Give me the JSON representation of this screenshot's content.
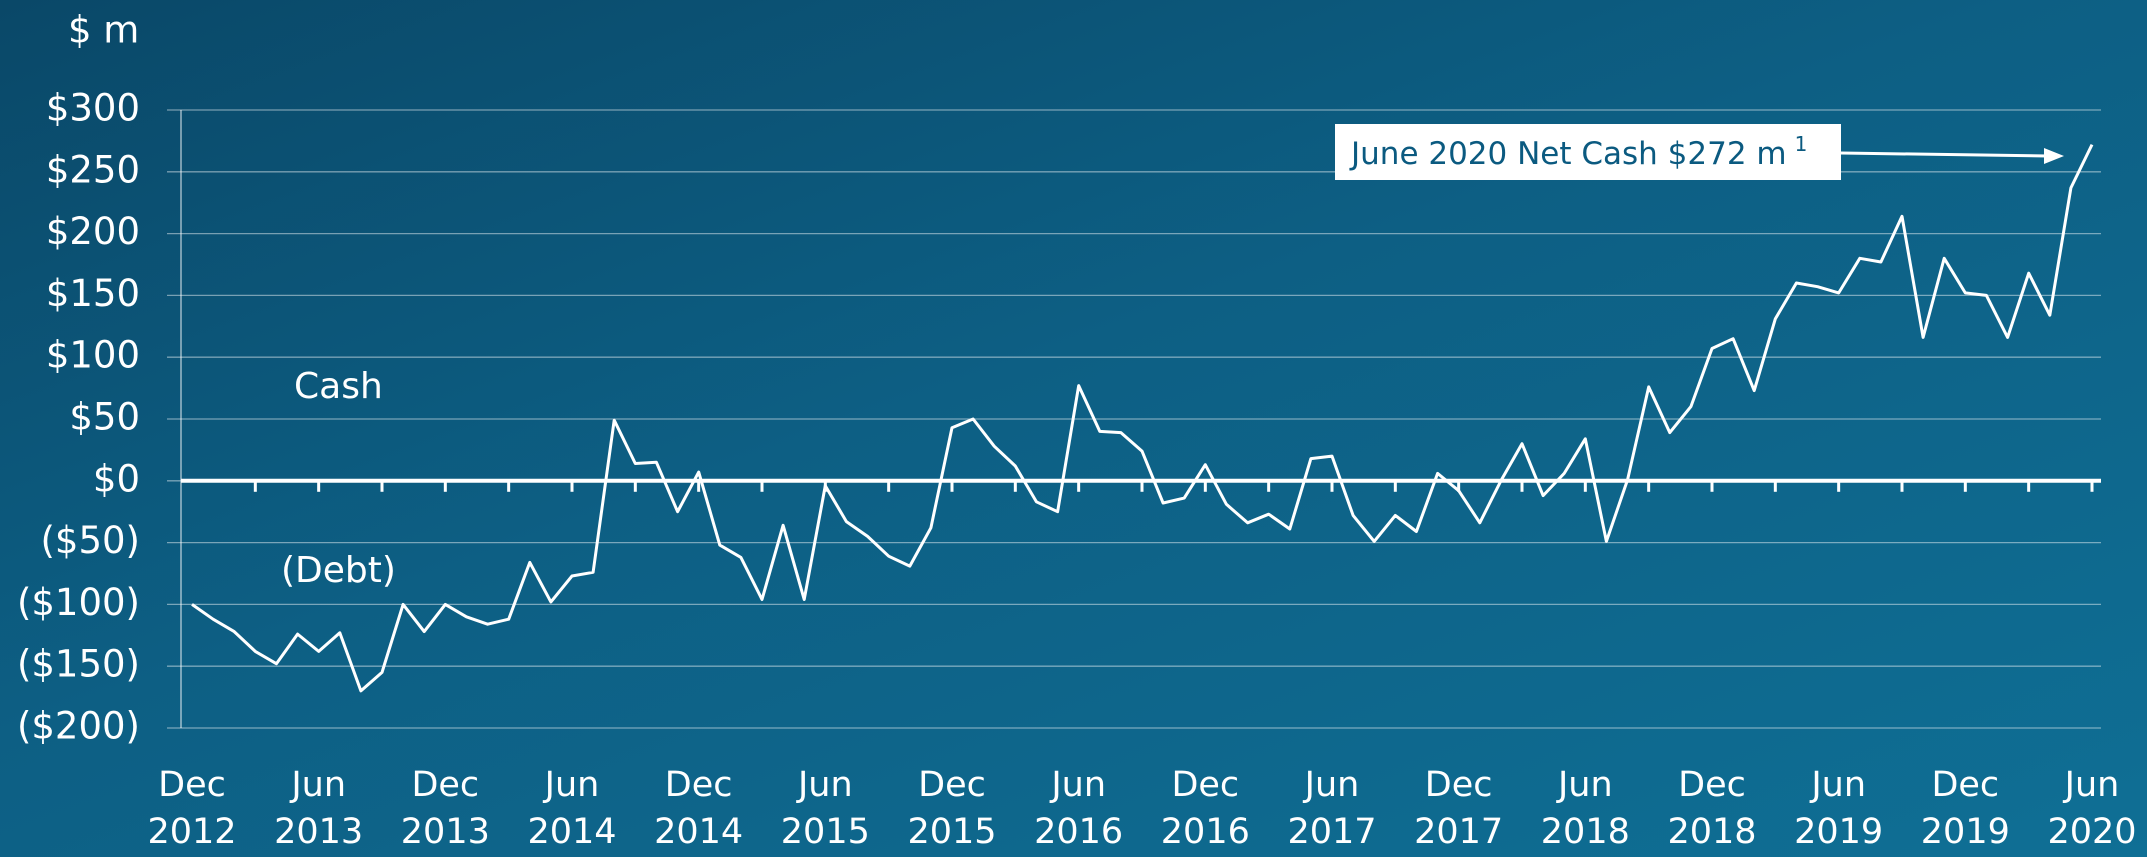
{
  "chart_data": {
    "type": "line",
    "y_unit": "$ m",
    "annotation_cash": "Cash",
    "annotation_debt": "(Debt)",
    "annotation": "June 2020 Net Cash $272 m",
    "annotation_footnote": "1",
    "categories": [
      "Dec 2012",
      null,
      null,
      null,
      null,
      null,
      "Jun 2013",
      null,
      null,
      null,
      null,
      null,
      "Dec 2013",
      null,
      null,
      null,
      null,
      null,
      "Jun 2014",
      null,
      null,
      null,
      null,
      null,
      "Dec 2014",
      null,
      null,
      null,
      null,
      null,
      "Jun 2015",
      null,
      null,
      null,
      null,
      null,
      "Dec 2015",
      null,
      null,
      null,
      null,
      null,
      "Jun 2016",
      null,
      null,
      null,
      null,
      null,
      "Dec 2016",
      null,
      null,
      null,
      null,
      null,
      "Jun 2017",
      null,
      null,
      null,
      null,
      null,
      "Dec 2017",
      null,
      null,
      null,
      null,
      null,
      "Jun 2018",
      null,
      null,
      null,
      null,
      null,
      "Dec 2018",
      null,
      null,
      null,
      null,
      null,
      "Jun 2019",
      null,
      null,
      null,
      null,
      null,
      "Dec 2019",
      null,
      null,
      null,
      null,
      null,
      "Jun 2020"
    ],
    "values": [
      -100,
      -112,
      -122,
      -138,
      -148,
      -124,
      -138,
      -123,
      -170,
      -155,
      -100,
      -122,
      -100,
      -110,
      -116,
      -112,
      -66,
      -98,
      -77,
      -74,
      49,
      14,
      15,
      -25,
      7,
      -52,
      -62,
      -96,
      -36,
      -96,
      -4,
      -33,
      -45,
      -61,
      -69,
      -38,
      43,
      50,
      28,
      12,
      -17,
      -25,
      77,
      40,
      39,
      24,
      -18,
      -14,
      13,
      -19,
      -34,
      -27,
      -39,
      18,
      20,
      -28,
      -49,
      -28,
      -41,
      6,
      -8,
      -34,
      0,
      30,
      -12,
      6,
      34,
      -49,
      1,
      76,
      39,
      60,
      107,
      115,
      73,
      131,
      160,
      157,
      152,
      180,
      177,
      214,
      116,
      180,
      152,
      150,
      116,
      168,
      134,
      237,
      272
    ],
    "line_color": "#ffffff",
    "ylim": [
      -200,
      300
    ],
    "yticks": [
      {
        "value": -200,
        "label": "($200)"
      },
      {
        "value": -150,
        "label": "($150)"
      },
      {
        "value": -100,
        "label": "($100)"
      },
      {
        "value": -50,
        "label": "($50)"
      },
      {
        "value": 0,
        "label": "$0"
      },
      {
        "value": 50,
        "label": "$50"
      },
      {
        "value": 100,
        "label": "$100"
      },
      {
        "value": 150,
        "label": "$150"
      },
      {
        "value": 200,
        "label": "$200"
      },
      {
        "value": 250,
        "label": "$250"
      },
      {
        "value": 300,
        "label": "$300"
      }
    ],
    "grid": true
  }
}
